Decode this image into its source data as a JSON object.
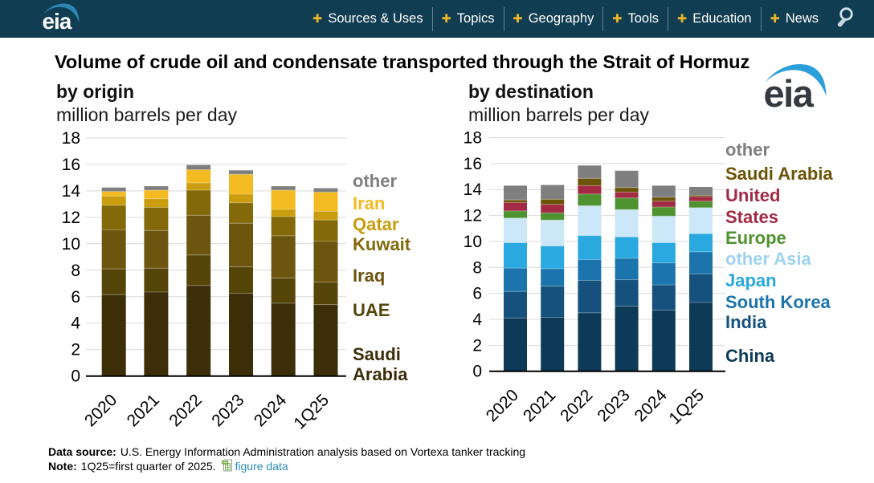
{
  "header": {
    "logo_text": "eia",
    "nav_items": [
      {
        "label": "Sources & Uses"
      },
      {
        "label": "Topics"
      },
      {
        "label": "Geography"
      },
      {
        "label": "Tools"
      },
      {
        "label": "Education"
      },
      {
        "label": "News"
      }
    ],
    "search_icon": "magnifying-glass",
    "colors": {
      "background": "#113d52",
      "plus": "#f0b323",
      "text": "#ffffff"
    }
  },
  "title": "Volume of crude oil and condensate transported through the Strait of Hormuz",
  "chart_data": [
    {
      "type": "bar",
      "subtype": "stacked",
      "title": "by origin",
      "ylabel": "million barrels per day",
      "categories": [
        "2020",
        "2021",
        "2022",
        "2023",
        "2024",
        "1Q25"
      ],
      "ylim": [
        0,
        18
      ],
      "ytick_step": 2,
      "grid": true,
      "legend_position": "right",
      "series": [
        {
          "name": "Saudi Arabia",
          "color": "#3b2e08",
          "values": [
            6.15,
            6.35,
            6.85,
            6.25,
            5.5,
            5.4
          ]
        },
        {
          "name": "UAE",
          "color": "#564509",
          "values": [
            1.95,
            1.8,
            2.3,
            2.0,
            1.9,
            1.7
          ]
        },
        {
          "name": "Iraq",
          "color": "#6c560f",
          "values": [
            2.95,
            2.85,
            3.0,
            3.3,
            3.2,
            3.1
          ]
        },
        {
          "name": "Kuwait",
          "color": "#84690b",
          "values": [
            1.85,
            1.75,
            1.9,
            1.55,
            1.45,
            1.6
          ]
        },
        {
          "name": "Qatar",
          "color": "#c99d0d",
          "values": [
            0.7,
            0.65,
            0.55,
            0.65,
            0.55,
            0.65
          ]
        },
        {
          "name": "Iran",
          "color": "#f3ba22",
          "values": [
            0.35,
            0.65,
            1.0,
            1.5,
            1.45,
            1.45
          ]
        },
        {
          "name": "other",
          "color": "#7f7f7f",
          "values": [
            0.3,
            0.3,
            0.35,
            0.3,
            0.3,
            0.3
          ]
        }
      ],
      "legend": [
        {
          "lines": [
            "other"
          ],
          "color": "#7f7f7f"
        },
        {
          "lines": [
            "Iran"
          ],
          "color": "#f3ba22"
        },
        {
          "lines": [
            "Qatar"
          ],
          "color": "#c99d0d"
        },
        {
          "lines": [
            "Kuwait"
          ],
          "color": "#84690b"
        },
        {
          "lines": [
            "Iraq"
          ],
          "color": "#6c560f"
        },
        {
          "lines": [
            "UAE"
          ],
          "color": "#564509"
        },
        {
          "lines": [
            "Saudi",
            "Arabia"
          ],
          "color": "#3b2e08"
        }
      ]
    },
    {
      "type": "bar",
      "subtype": "stacked",
      "title": "by destination",
      "ylabel": "million barrels per day",
      "categories": [
        "2020",
        "2021",
        "2022",
        "2023",
        "2024",
        "1Q25"
      ],
      "ylim": [
        0,
        18
      ],
      "ytick_step": 2,
      "grid": true,
      "legend_position": "right",
      "series": [
        {
          "name": "China",
          "color": "#0d3a56",
          "values": [
            4.1,
            4.15,
            4.5,
            5.0,
            4.7,
            5.3
          ]
        },
        {
          "name": "India",
          "color": "#15517c",
          "values": [
            2.05,
            2.4,
            2.5,
            2.05,
            1.95,
            2.2
          ]
        },
        {
          "name": "South Korea",
          "color": "#1b74ac",
          "values": [
            1.8,
            1.35,
            1.6,
            1.65,
            1.7,
            1.7
          ]
        },
        {
          "name": "Japan",
          "color": "#29a9e0",
          "values": [
            1.95,
            1.75,
            1.85,
            1.65,
            1.55,
            1.4
          ]
        },
        {
          "name": "other Asia",
          "color": "#cbe7f8",
          "values": [
            1.9,
            2.0,
            2.3,
            2.1,
            2.05,
            2.0
          ]
        },
        {
          "name": "Europe",
          "color": "#4f9230",
          "values": [
            0.55,
            0.55,
            0.9,
            0.9,
            0.7,
            0.5
          ]
        },
        {
          "name": "United States",
          "color": "#a22a44",
          "values": [
            0.65,
            0.65,
            0.65,
            0.45,
            0.45,
            0.35
          ]
        },
        {
          "name": "Saudi Arabia",
          "color": "#6b5408",
          "values": [
            0.2,
            0.4,
            0.55,
            0.35,
            0.3,
            0.1
          ]
        },
        {
          "name": "other",
          "color": "#7f7f7f",
          "values": [
            1.1,
            1.1,
            1.0,
            1.3,
            0.9,
            0.65
          ]
        }
      ],
      "legend": [
        {
          "lines": [
            "other"
          ],
          "color": "#7f7f7f"
        },
        {
          "lines": [
            "Saudi Arabia"
          ],
          "color": "#6b5408"
        },
        {
          "lines": [
            "United",
            "States"
          ],
          "color": "#a22a44"
        },
        {
          "lines": [
            "Europe"
          ],
          "color": "#4f9230"
        },
        {
          "lines": [
            "other Asia"
          ],
          "color": "#9ed3ef"
        },
        {
          "lines": [
            "Japan"
          ],
          "color": "#29a9e0"
        },
        {
          "lines": [
            "South Korea"
          ],
          "color": "#1b74ac"
        },
        {
          "lines": [
            "India"
          ],
          "color": "#15517c"
        },
        {
          "lines": [
            "China"
          ],
          "color": "#0d3a56"
        }
      ]
    }
  ],
  "footer": {
    "data_source_label": "Data source:",
    "data_source_text": "U.S. Energy Information Administration analysis based on Vortexa tanker tracking",
    "note_label": "Note:",
    "note_text": "1Q25=first quarter of 2025.",
    "figure_data_link": "figure data",
    "link_color": "#2a8cba"
  }
}
